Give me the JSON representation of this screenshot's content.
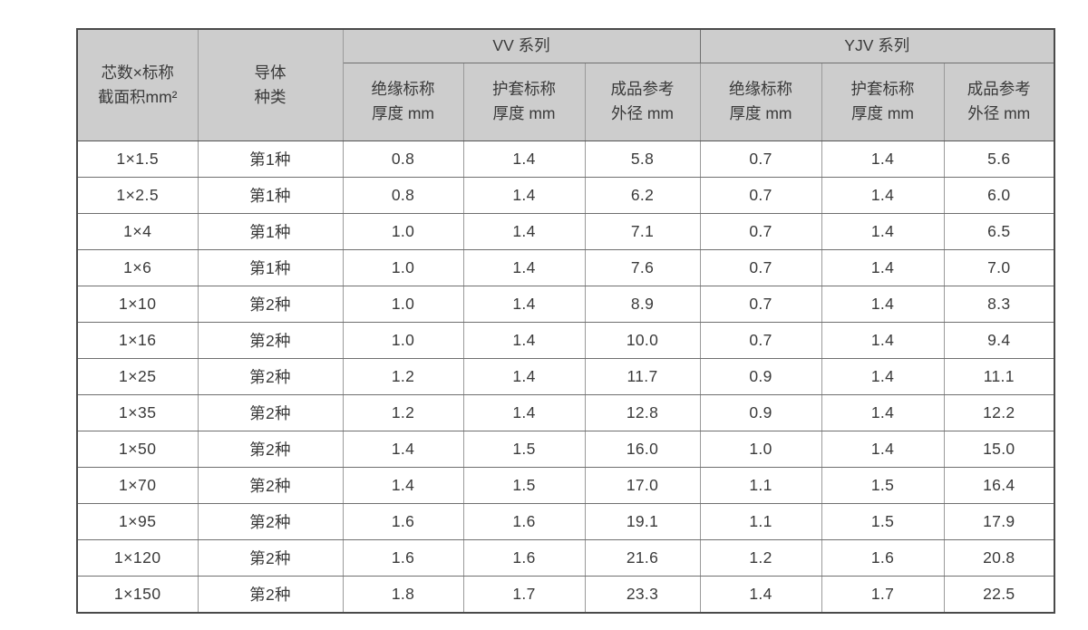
{
  "table": {
    "corner_header": {
      "line1": "芯数×标称",
      "line2": "截面积mm²"
    },
    "conductor_header": {
      "line1": "导体",
      "line2": "种类"
    },
    "groups": [
      {
        "label": "VV 系列"
      },
      {
        "label": "YJV 系列"
      }
    ],
    "subheaders": [
      {
        "line1": "绝缘标称",
        "line2": "厚度 mm"
      },
      {
        "line1": "护套标称",
        "line2": "厚度 mm"
      },
      {
        "line1": "成品参考",
        "line2": "外径 mm"
      },
      {
        "line1": "绝缘标称",
        "line2": "厚度 mm"
      },
      {
        "line1": "护套标称",
        "line2": "厚度 mm"
      },
      {
        "line1": "成品参考",
        "line2": "外径 mm"
      }
    ],
    "rows": [
      [
        "1×1.5",
        "第1种",
        "0.8",
        "1.4",
        "5.8",
        "0.7",
        "1.4",
        "5.6"
      ],
      [
        "1×2.5",
        "第1种",
        "0.8",
        "1.4",
        "6.2",
        "0.7",
        "1.4",
        "6.0"
      ],
      [
        "1×4",
        "第1种",
        "1.0",
        "1.4",
        "7.1",
        "0.7",
        "1.4",
        "6.5"
      ],
      [
        "1×6",
        "第1种",
        "1.0",
        "1.4",
        "7.6",
        "0.7",
        "1.4",
        "7.0"
      ],
      [
        "1×10",
        "第2种",
        "1.0",
        "1.4",
        "8.9",
        "0.7",
        "1.4",
        "8.3"
      ],
      [
        "1×16",
        "第2种",
        "1.0",
        "1.4",
        "10.0",
        "0.7",
        "1.4",
        "9.4"
      ],
      [
        "1×25",
        "第2种",
        "1.2",
        "1.4",
        "11.7",
        "0.9",
        "1.4",
        "11.1"
      ],
      [
        "1×35",
        "第2种",
        "1.2",
        "1.4",
        "12.8",
        "0.9",
        "1.4",
        "12.2"
      ],
      [
        "1×50",
        "第2种",
        "1.4",
        "1.5",
        "16.0",
        "1.0",
        "1.4",
        "15.0"
      ],
      [
        "1×70",
        "第2种",
        "1.4",
        "1.5",
        "17.0",
        "1.1",
        "1.5",
        "16.4"
      ],
      [
        "1×95",
        "第2种",
        "1.6",
        "1.6",
        "19.1",
        "1.1",
        "1.5",
        "17.9"
      ],
      [
        "1×120",
        "第2种",
        "1.6",
        "1.6",
        "21.6",
        "1.2",
        "1.6",
        "20.8"
      ],
      [
        "1×150",
        "第2种",
        "1.8",
        "1.7",
        "23.3",
        "1.4",
        "1.7",
        "22.5"
      ]
    ],
    "colors": {
      "header_bg": "#cdcdcd",
      "outer_border": "#4a4a4a",
      "inner_border": "#6f6f6f",
      "text": "#3a3a3a"
    }
  }
}
